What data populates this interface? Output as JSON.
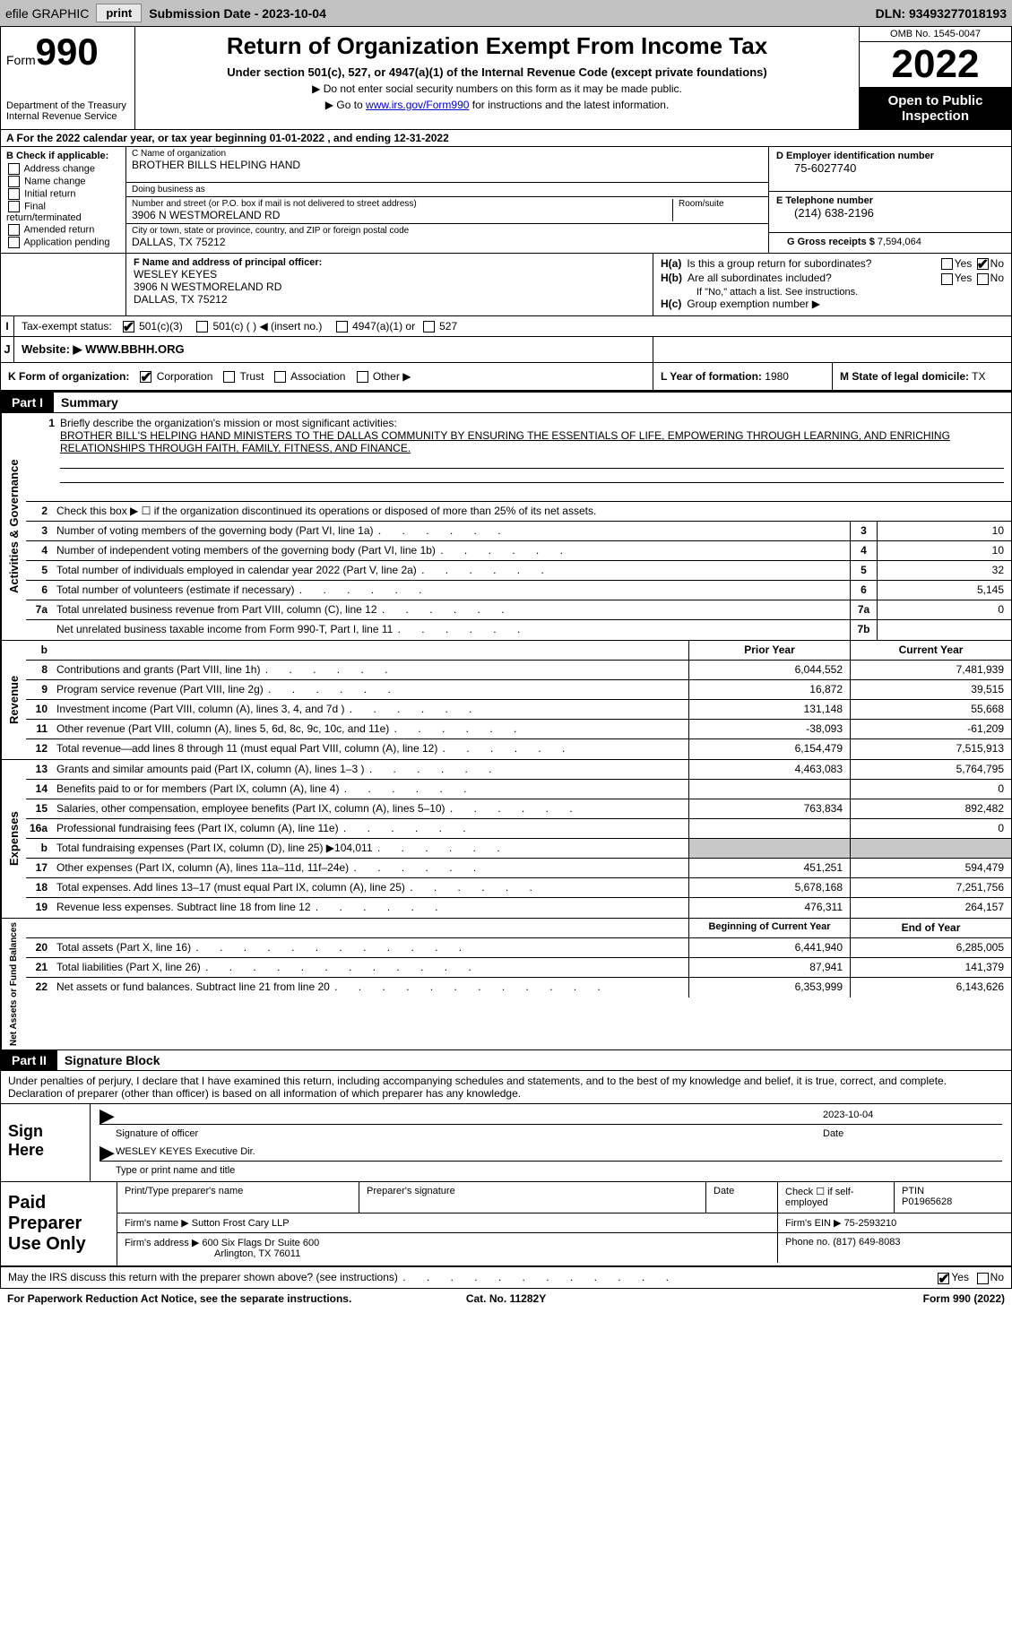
{
  "top_bar": {
    "efile_label": "efile GRAPHIC",
    "print_btn": "print",
    "submission_label": "Submission Date - 2023-10-04",
    "dln": "DLN: 93493277018193"
  },
  "header": {
    "form_prefix": "Form",
    "form_number": "990",
    "dept": "Department of the Treasury",
    "irs": "Internal Revenue Service",
    "title": "Return of Organization Exempt From Income Tax",
    "subtitle": "Under section 501(c), 527, or 4947(a)(1) of the Internal Revenue Code (except private foundations)",
    "note1": "▶ Do not enter social security numbers on this form as it may be made public.",
    "note2_prefix": "▶ Go to ",
    "note2_link": "www.irs.gov/Form990",
    "note2_suffix": " for instructions and the latest information.",
    "omb": "OMB No. 1545-0047",
    "year": "2022",
    "open": "Open to Public Inspection"
  },
  "row_a": "A For the 2022 calendar year, or tax year beginning 01-01-2022    , and ending 12-31-2022",
  "col_b": {
    "label": "B Check if applicable:",
    "items": [
      "Address change",
      "Name change",
      "Initial return",
      "Final return/terminated",
      "Amended return",
      "Application pending"
    ]
  },
  "col_c": {
    "name_label": "C Name of organization",
    "name": "BROTHER BILLS HELPING HAND",
    "dba_label": "Doing business as",
    "dba": "",
    "street_label": "Number and street (or P.O. box if mail is not delivered to street address)",
    "room_label": "Room/suite",
    "street": "3906 N WESTMORELAND RD",
    "city_label": "City or town, state or province, country, and ZIP or foreign postal code",
    "city": "DALLAS, TX  75212"
  },
  "col_d": {
    "ein_label": "D Employer identification number",
    "ein": "75-6027740",
    "phone_label": "E Telephone number",
    "phone": "(214) 638-2196",
    "gross_label": "G Gross receipts $",
    "gross": "7,594,064"
  },
  "section_f": {
    "label": "F Name and address of principal officer:",
    "name": "WESLEY KEYES",
    "addr1": "3906 N WESTMORELAND RD",
    "addr2": "DALLAS, TX  75212",
    "ha_label": "H(a)",
    "ha_text": "Is this a group return for subordinates?",
    "hb_label": "H(b)",
    "hb_text": "Are all subordinates included?",
    "hb_note": "If \"No,\" attach a list. See instructions.",
    "hc_label": "H(c)",
    "hc_text": "Group exemption number ▶"
  },
  "row_i": {
    "label": "Tax-exempt status:",
    "opt1": "501(c)(3)",
    "opt2": "501(c) (  ) ◀ (insert no.)",
    "opt3": "4947(a)(1) or",
    "opt4": "527"
  },
  "row_j": {
    "label": "Website: ▶",
    "value": "WWW.BBHH.ORG"
  },
  "row_k": {
    "label": "K Form of organization:",
    "opts": [
      "Corporation",
      "Trust",
      "Association",
      "Other ▶"
    ],
    "l_label": "L Year of formation:",
    "l_val": "1980",
    "m_label": "M State of legal domicile:",
    "m_val": "TX"
  },
  "part1": {
    "header": "Part I",
    "title": "Summary",
    "line1_label": "Briefly describe the organization's mission or most significant activities:",
    "line1_text": "BROTHER BILL'S HELPING HAND MINISTERS TO THE DALLAS COMMUNITY BY ENSURING THE ESSENTIALS OF LIFE, EMPOWERING THROUGH LEARNING, AND ENRICHING RELATIONSHIPS THROUGH FAITH, FAMILY, FITNESS, AND FINANCE.",
    "line2": "Check this box ▶ ☐ if the organization discontinued its operations or disposed of more than 25% of its net assets.",
    "gov_lines": [
      {
        "num": "3",
        "desc": "Number of voting members of the governing body (Part VI, line 1a)",
        "box": "3",
        "val": "10"
      },
      {
        "num": "4",
        "desc": "Number of independent voting members of the governing body (Part VI, line 1b)",
        "box": "4",
        "val": "10"
      },
      {
        "num": "5",
        "desc": "Total number of individuals employed in calendar year 2022 (Part V, line 2a)",
        "box": "5",
        "val": "32"
      },
      {
        "num": "6",
        "desc": "Total number of volunteers (estimate if necessary)",
        "box": "6",
        "val": "5,145"
      },
      {
        "num": "7a",
        "desc": "Total unrelated business revenue from Part VIII, column (C), line 12",
        "box": "7a",
        "val": "0"
      },
      {
        "num": "",
        "desc": "Net unrelated business taxable income from Form 990-T, Part I, line 11",
        "box": "7b",
        "val": ""
      }
    ],
    "rev_header": {
      "num": "b",
      "prior": "Prior Year",
      "curr": "Current Year"
    },
    "rev_lines": [
      {
        "num": "8",
        "desc": "Contributions and grants (Part VIII, line 1h)",
        "prior": "6,044,552",
        "curr": "7,481,939"
      },
      {
        "num": "9",
        "desc": "Program service revenue (Part VIII, line 2g)",
        "prior": "16,872",
        "curr": "39,515"
      },
      {
        "num": "10",
        "desc": "Investment income (Part VIII, column (A), lines 3, 4, and 7d )",
        "prior": "131,148",
        "curr": "55,668"
      },
      {
        "num": "11",
        "desc": "Other revenue (Part VIII, column (A), lines 5, 6d, 8c, 9c, 10c, and 11e)",
        "prior": "-38,093",
        "curr": "-61,209"
      },
      {
        "num": "12",
        "desc": "Total revenue—add lines 8 through 11 (must equal Part VIII, column (A), line 12)",
        "prior": "6,154,479",
        "curr": "7,515,913"
      }
    ],
    "exp_lines": [
      {
        "num": "13",
        "desc": "Grants and similar amounts paid (Part IX, column (A), lines 1–3 )",
        "prior": "4,463,083",
        "curr": "5,764,795"
      },
      {
        "num": "14",
        "desc": "Benefits paid to or for members (Part IX, column (A), line 4)",
        "prior": "",
        "curr": "0"
      },
      {
        "num": "15",
        "desc": "Salaries, other compensation, employee benefits (Part IX, column (A), lines 5–10)",
        "prior": "763,834",
        "curr": "892,482"
      },
      {
        "num": "16a",
        "desc": "Professional fundraising fees (Part IX, column (A), line 11e)",
        "prior": "",
        "curr": "0"
      },
      {
        "num": "b",
        "desc": "Total fundraising expenses (Part IX, column (D), line 25) ▶104,011",
        "prior": "GREY",
        "curr": "GREY"
      },
      {
        "num": "17",
        "desc": "Other expenses (Part IX, column (A), lines 11a–11d, 11f–24e)",
        "prior": "451,251",
        "curr": "594,479"
      },
      {
        "num": "18",
        "desc": "Total expenses. Add lines 13–17 (must equal Part IX, column (A), line 25)",
        "prior": "5,678,168",
        "curr": "7,251,756"
      },
      {
        "num": "19",
        "desc": "Revenue less expenses. Subtract line 18 from line 12",
        "prior": "476,311",
        "curr": "264,157"
      }
    ],
    "net_header": {
      "prior": "Beginning of Current Year",
      "curr": "End of Year"
    },
    "net_lines": [
      {
        "num": "20",
        "desc": "Total assets (Part X, line 16)",
        "prior": "6,441,940",
        "curr": "6,285,005"
      },
      {
        "num": "21",
        "desc": "Total liabilities (Part X, line 26)",
        "prior": "87,941",
        "curr": "141,379"
      },
      {
        "num": "22",
        "desc": "Net assets or fund balances. Subtract line 21 from line 20",
        "prior": "6,353,999",
        "curr": "6,143,626"
      }
    ]
  },
  "part2": {
    "header": "Part II",
    "title": "Signature Block",
    "penalty": "Under penalties of perjury, I declare that I have examined this return, including accompanying schedules and statements, and to the best of my knowledge and belief, it is true, correct, and complete. Declaration of preparer (other than officer) is based on all information of which preparer has any knowledge.",
    "sign_here": "Sign Here",
    "sig_officer_label": "Signature of officer",
    "sig_date": "2023-10-04",
    "date_label": "Date",
    "officer_name": "WESLEY KEYES  Executive Dir.",
    "officer_label": "Type or print name and title",
    "paid_label": "Paid Preparer Use Only",
    "prep_name_label": "Print/Type preparer's name",
    "prep_sig_label": "Preparer's signature",
    "prep_date_label": "Date",
    "prep_check_label": "Check ☐ if self-employed",
    "ptin_label": "PTIN",
    "ptin": "P01965628",
    "firm_name_label": "Firm's name    ▶",
    "firm_name": "Sutton Frost Cary LLP",
    "firm_ein_label": "Firm's EIN ▶",
    "firm_ein": "75-2593210",
    "firm_addr_label": "Firm's address ▶",
    "firm_addr1": "600 Six Flags Dr Suite 600",
    "firm_addr2": "Arlington, TX  76011",
    "firm_phone_label": "Phone no.",
    "firm_phone": "(817) 649-8083",
    "irs_discuss": "May the IRS discuss this return with the preparer shown above? (see instructions)"
  },
  "footer": {
    "left": "For Paperwork Reduction Act Notice, see the separate instructions.",
    "mid": "Cat. No. 11282Y",
    "right": "Form 990 (2022)"
  }
}
